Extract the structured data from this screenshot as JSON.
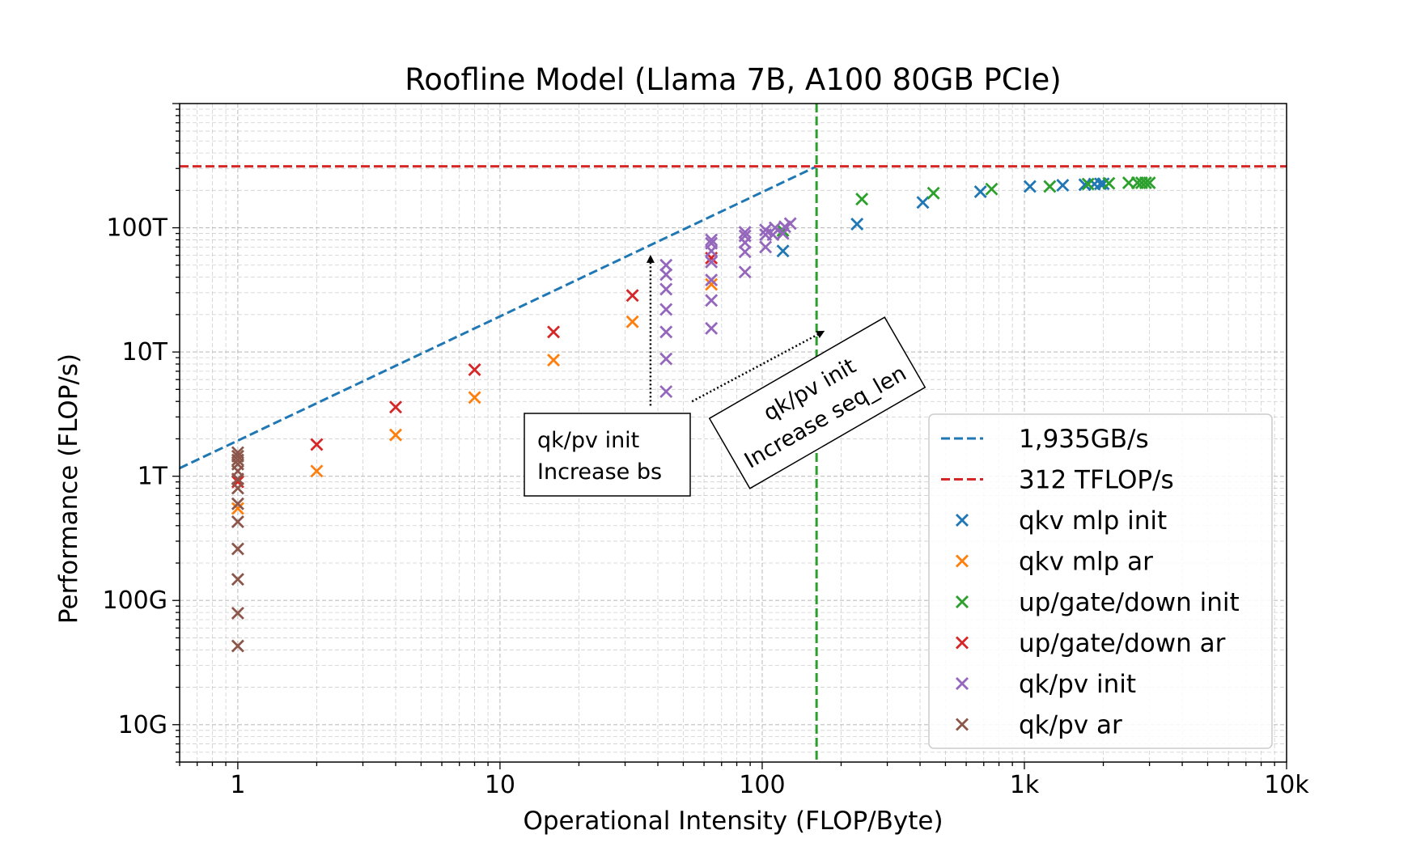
{
  "chart_data": {
    "type": "scatter",
    "title": "Roofline Model (Llama 7B, A100 80GB PCIe)",
    "xlabel": "Operational Intensity (FLOP/Byte)",
    "ylabel": "Performance (FLOP/s)",
    "xscale": "log",
    "yscale": "log",
    "xlim": [
      0.6,
      10000
    ],
    "ylim": [
      5000000000.0,
      1000000000000000.0
    ],
    "grid": true,
    "legend_position": "lower-right",
    "x_ticks": [
      {
        "value": 1,
        "label": "1"
      },
      {
        "value": 10,
        "label": "10"
      },
      {
        "value": 100,
        "label": "100"
      },
      {
        "value": 1000,
        "label": "1k"
      },
      {
        "value": 10000,
        "label": "10k"
      }
    ],
    "y_ticks": [
      {
        "value": 10000000000.0,
        "label": "10G"
      },
      {
        "value": 100000000000.0,
        "label": "100G"
      },
      {
        "value": 1000000000000.0,
        "label": "1T"
      },
      {
        "value": 10000000000000.0,
        "label": "10T"
      },
      {
        "value": 100000000000000.0,
        "label": "100T"
      }
    ],
    "lines": [
      {
        "name": "1,935GB/s",
        "color": "#1f77b4",
        "style": "dashed",
        "x": [
          0.6,
          161.2
        ],
        "y": [
          1161000000000.0,
          312000000000000.0
        ]
      },
      {
        "name": "312 TFLOP/s",
        "color": "#d62728",
        "style": "dashed",
        "x": [
          0.6,
          10000
        ],
        "y": [
          312000000000000.0,
          312000000000000.0
        ]
      }
    ],
    "vline": {
      "x": 161.2,
      "color": "#2ca02c",
      "style": "dashed"
    },
    "series": [
      {
        "name": "qkv mlp init",
        "color": "#1f77b4",
        "points": [
          [
            120,
            65000000000000.0
          ],
          [
            230,
            107000000000000.0
          ],
          [
            410,
            160000000000000.0
          ],
          [
            680,
            195000000000000.0
          ],
          [
            1050,
            215000000000000.0
          ],
          [
            1400,
            220000000000000.0
          ],
          [
            1700,
            222000000000000.0
          ],
          [
            1850,
            225000000000000.0
          ],
          [
            1950,
            226000000000000.0
          ],
          [
            2000,
            226000000000000.0
          ]
        ]
      },
      {
        "name": "qkv mlp ar",
        "color": "#ff7f0e",
        "points": [
          [
            1,
            550000000000.0
          ],
          [
            2,
            1100000000000.0
          ],
          [
            4,
            2150000000000.0
          ],
          [
            8,
            4300000000000.0
          ],
          [
            16,
            8600000000000.0
          ],
          [
            32,
            17500000000000.0
          ],
          [
            64,
            35000000000000.0
          ]
        ]
      },
      {
        "name": "up/gate/down init",
        "color": "#2ca02c",
        "points": [
          [
            120,
            95000000000000.0
          ],
          [
            240,
            170000000000000.0
          ],
          [
            450,
            190000000000000.0
          ],
          [
            750,
            205000000000000.0
          ],
          [
            1250,
            215000000000000.0
          ],
          [
            1750,
            225000000000000.0
          ],
          [
            2100,
            228000000000000.0
          ],
          [
            2500,
            230000000000000.0
          ],
          [
            2700,
            230000000000000.0
          ],
          [
            2800,
            230000000000000.0
          ],
          [
            2900,
            230000000000000.0
          ],
          [
            3000,
            230000000000000.0
          ]
        ]
      },
      {
        "name": "up/gate/down ar",
        "color": "#d62728",
        "points": [
          [
            1,
            900000000000.0
          ],
          [
            2,
            1800000000000.0
          ],
          [
            4,
            3600000000000.0
          ],
          [
            8,
            7200000000000.0
          ],
          [
            16,
            14500000000000.0
          ],
          [
            32,
            28500000000000.0
          ],
          [
            64,
            57000000000000.0
          ]
        ]
      },
      {
        "name": "qk/pv init",
        "color": "#9467bd",
        "points": [
          [
            43,
            4800000000000.0
          ],
          [
            43,
            8800000000000.0
          ],
          [
            43,
            14500000000000.0
          ],
          [
            43,
            22000000000000.0
          ],
          [
            43,
            32000000000000.0
          ],
          [
            43,
            42000000000000.0
          ],
          [
            43,
            50000000000000.0
          ],
          [
            64,
            15500000000000.0
          ],
          [
            64,
            26000000000000.0
          ],
          [
            64,
            38000000000000.0
          ],
          [
            64,
            53000000000000.0
          ],
          [
            64,
            65000000000000.0
          ],
          [
            64,
            75000000000000.0
          ],
          [
            64,
            80000000000000.0
          ],
          [
            86,
            44000000000000.0
          ],
          [
            86,
            64000000000000.0
          ],
          [
            86,
            76000000000000.0
          ],
          [
            86,
            86000000000000.0
          ],
          [
            86,
            92000000000000.0
          ],
          [
            103,
            70000000000000.0
          ],
          [
            103,
            88000000000000.0
          ],
          [
            103,
            96000000000000.0
          ],
          [
            110,
            88000000000000.0
          ],
          [
            112,
            100000000000000.0
          ],
          [
            120,
            90000000000000.0
          ],
          [
            122,
            102000000000000.0
          ],
          [
            128,
            108000000000000.0
          ]
        ]
      },
      {
        "name": "qk/pv ar",
        "color": "#8c564b",
        "points": [
          [
            1,
            43000000000.0
          ],
          [
            1,
            79000000000.0
          ],
          [
            1,
            148000000000.0
          ],
          [
            1,
            260000000000.0
          ],
          [
            1,
            430000000000.0
          ],
          [
            1,
            600000000000.0
          ],
          [
            1,
            800000000000.0
          ],
          [
            1,
            950000000000.0
          ],
          [
            1,
            1100000000000.0
          ],
          [
            1,
            1250000000000.0
          ],
          [
            1,
            1350000000000.0
          ],
          [
            1,
            1450000000000.0
          ],
          [
            1,
            1550000000000.0
          ]
        ]
      }
    ],
    "annotations": [
      {
        "text_lines": [
          "qk/pv init",
          "Increase bs"
        ],
        "arrow_from": [
          37.5,
          3700000000000.0
        ],
        "arrow_to": [
          37.5,
          58000000000000.0
        ],
        "box_anchor": [
          34,
          2500000000000.0
        ]
      },
      {
        "text_lines": [
          "qk/pv init",
          "Increase seq_len"
        ],
        "arrow_from": [
          54,
          4000000000000.0
        ],
        "arrow_to": [
          170,
          14500000000000.0
        ],
        "box_anchor": [
          143,
          3000000000000.0
        ],
        "rotation": -30
      }
    ]
  }
}
